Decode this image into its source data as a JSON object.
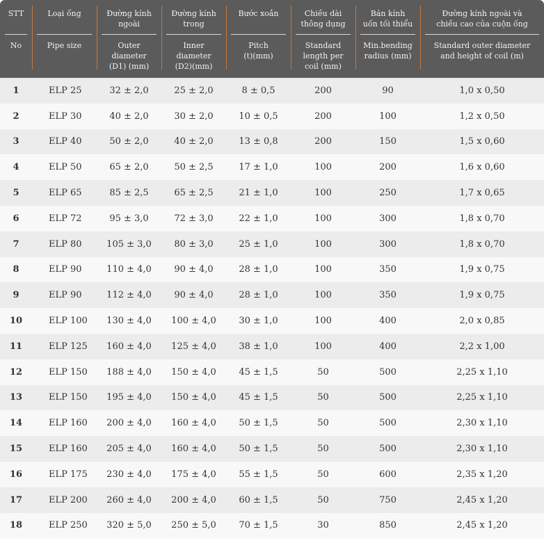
{
  "table": {
    "header": [
      {
        "vi": [
          "STT"
        ],
        "en": [
          "No"
        ]
      },
      {
        "vi": [
          "Loại ống"
        ],
        "en": [
          "Pipe size"
        ]
      },
      {
        "vi": [
          "Đường kính",
          "ngoài"
        ],
        "en": [
          "Outer",
          "diameter",
          "(D1) (mm)"
        ]
      },
      {
        "vi": [
          "Đường kính",
          "trong"
        ],
        "en": [
          "Inner",
          "diameter",
          "(D2)(mm)"
        ]
      },
      {
        "vi": [
          "Bước xoắn"
        ],
        "en": [
          "Pitch",
          "(t)(mm)"
        ]
      },
      {
        "vi": [
          "Chiều dài",
          "thông dụng"
        ],
        "en": [
          "Standard",
          "length per",
          "coil (mm)"
        ]
      },
      {
        "vi": [
          "Bán kính",
          "uốn tối thiểu"
        ],
        "en": [
          "Min.bending",
          "radius (mm)"
        ]
      },
      {
        "vi": [
          "Đường kính ngoài và",
          "chiều cao của cuộn ống"
        ],
        "en": [
          "Standard outer diameter",
          "and height of coil (m)"
        ]
      }
    ],
    "rows": [
      [
        "1",
        "ELP 25",
        "32 ± 2,0",
        "25 ± 2,0",
        "8 ± 0,5",
        "200",
        "90",
        "1,0 x 0,50"
      ],
      [
        "2",
        "ELP 30",
        "40 ± 2,0",
        "30 ± 2,0",
        "10 ± 0,5",
        "200",
        "100",
        "1,2 x 0,50"
      ],
      [
        "3",
        "ELP 40",
        "50 ± 2,0",
        "40 ± 2,0",
        "13 ± 0,8",
        "200",
        "150",
        "1,5 x 0,60"
      ],
      [
        "4",
        "ELP 50",
        "65 ± 2,0",
        "50 ± 2,5",
        "17 ± 1,0",
        "100",
        "200",
        "1,6 x 0,60"
      ],
      [
        "5",
        "ELP 65",
        "85 ± 2,5",
        "65 ± 2,5",
        "21 ± 1,0",
        "100",
        "250",
        "1,7 x 0,65"
      ],
      [
        "6",
        "ELP 72",
        "95 ± 3,0",
        "72 ± 3,0",
        "22 ± 1,0",
        "100",
        "300",
        "1,8 x 0,70"
      ],
      [
        "7",
        "ELP 80",
        "105 ± 3,0",
        "80 ± 3,0",
        "25 ± 1,0",
        "100",
        "300",
        "1,8 x 0,70"
      ],
      [
        "8",
        "ELP 90",
        "110 ± 4,0",
        "90 ± 4,0",
        "28 ± 1,0",
        "100",
        "350",
        "1,9 x 0,75"
      ],
      [
        "9",
        "ELP 90",
        "112 ± 4,0",
        "90 ± 4,0",
        "28 ± 1,0",
        "100",
        "350",
        "1,9 x 0,75"
      ],
      [
        "10",
        "ELP 100",
        "130 ± 4,0",
        "100 ± 4,0",
        "30 ± 1,0",
        "100",
        "400",
        "2,0 x 0,85"
      ],
      [
        "11",
        "ELP 125",
        "160 ± 4,0",
        "125 ± 4,0",
        "38 ± 1,0",
        "100",
        "400",
        "2,2 x 1,00"
      ],
      [
        "12",
        "ELP 150",
        "188 ± 4,0",
        "150 ± 4,0",
        "45 ± 1,5",
        "50",
        "500",
        "2,25 x 1,10"
      ],
      [
        "13",
        "ELP 150",
        "195 ± 4,0",
        "150 ± 4,0",
        "45 ± 1,5",
        "50",
        "500",
        "2,25 x 1,10"
      ],
      [
        "14",
        "ELP 160",
        "200 ± 4,0",
        "160 ± 4,0",
        "50 ± 1,5",
        "50",
        "500",
        "2,30 x 1,10"
      ],
      [
        "15",
        "ELP 160",
        "205 ± 4,0",
        "160 ± 4,0",
        "50 ± 1,5",
        "50",
        "500",
        "2,30 x 1,10"
      ],
      [
        "16",
        "ELP 175",
        "230 ± 4,0",
        "175 ± 4,0",
        "55 ± 1,5",
        "50",
        "600",
        "2,35 x 1,20"
      ],
      [
        "17",
        "ELP 200",
        "260 ± 4,0",
        "200 ± 4,0",
        "60 ± 1,5",
        "50",
        "750",
        "2,45 x 1,20"
      ],
      [
        "18",
        "ELP 250",
        "320 ± 5,0",
        "250 ± 5,0",
        "70 ± 1,5",
        "30",
        "850",
        "2,45 x 1,20"
      ]
    ]
  }
}
